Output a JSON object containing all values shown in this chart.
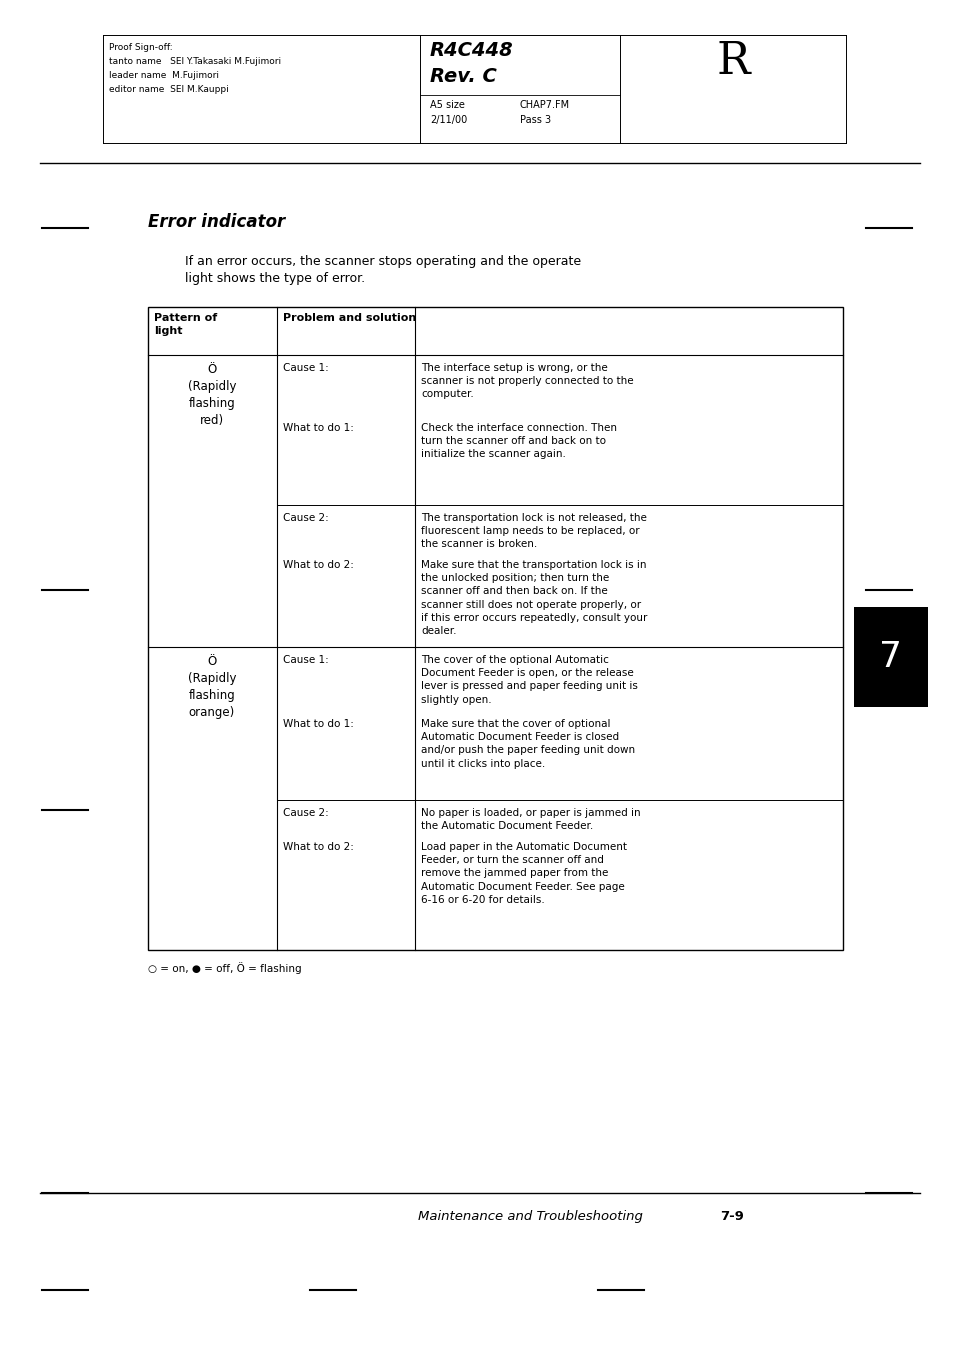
{
  "bg_color": "#ffffff",
  "page_width": 9.54,
  "page_height": 13.51,
  "dpi": 100,
  "header": {
    "proof_lines": [
      "Proof Sign-off:",
      "tanto name   SEI Y.Takasaki M.Fujimori",
      "leader name  M.Fujimori",
      "editor name  SEI M.Kauppi"
    ],
    "title_bold": "R4C448",
    "title_bold2": "Rev. C",
    "subtitle1": "A5 size",
    "subtitle2": "2/11/00",
    "subtitle3": "CHAP7.FM",
    "subtitle4": "Pass 3",
    "chapter_letter": "R"
  },
  "section_title": "Error indicator",
  "intro_text": "If an error occurs, the scanner stops operating and the operate\nlight shows the type of error.",
  "table": {
    "rows": [
      {
        "light_pattern": "Ö\n(Rapidly\nflashing\nred)",
        "cause1_label": "Cause 1:",
        "cause1_text": "The interface setup is wrong, or the\nscanner is not properly connected to the\ncomputer.",
        "what1_label": "What to do 1:",
        "what1_text": "Check the interface connection. Then\nturn the scanner off and back on to\ninitialize the scanner again.",
        "cause2_label": "Cause 2:",
        "cause2_text": "The transportation lock is not released, the\nfluorescent lamp needs to be replaced, or\nthe scanner is broken.",
        "what2_label": "What to do 2:",
        "what2_text": "Make sure that the transportation lock is in\nthe unlocked position; then turn the\nscanner off and then back on. If the\nscanner still does not operate properly, or\nif this error occurs repeatedly, consult your\ndealer."
      },
      {
        "light_pattern": "Ö\n(Rapidly\nflashing\norange)",
        "cause1_label": "Cause 1:",
        "cause1_text": "The cover of the optional Automatic\nDocument Feeder is open, or the release\nlever is pressed and paper feeding unit is\nslightly open.",
        "what1_label": "What to do 1:",
        "what1_text": "Make sure that the cover of optional\nAutomatic Document Feeder is closed\nand/or push the paper feeding unit down\nuntil it clicks into place.",
        "cause2_label": "Cause 2:",
        "cause2_text": "No paper is loaded, or paper is jammed in\nthe Automatic Document Feeder.",
        "what2_label": "What to do 2:",
        "what2_text": "Load paper in the Automatic Document\nFeeder, or turn the scanner off and\nremove the jammed paper from the\nAutomatic Document Feeder. See page\n6-16 or 6-20 for details."
      }
    ]
  },
  "legend_text": "○ = on, ● = off, Ö = flashing",
  "footer_italic": "Maintenance and Troubleshooting",
  "footer_page": "7-9",
  "chapter_tab": "7"
}
